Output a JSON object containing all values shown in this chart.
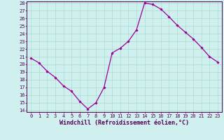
{
  "hours": [
    0,
    1,
    2,
    3,
    4,
    5,
    6,
    7,
    8,
    9,
    10,
    11,
    12,
    13,
    14,
    15,
    16,
    17,
    18,
    19,
    20,
    21,
    22,
    23
  ],
  "values": [
    20.8,
    20.2,
    19.1,
    18.3,
    17.2,
    16.5,
    15.2,
    14.2,
    15.0,
    17.0,
    21.5,
    22.1,
    23.0,
    24.5,
    28.0,
    27.8,
    27.2,
    26.2,
    25.1,
    24.2,
    23.3,
    22.2,
    21.0,
    20.3
  ],
  "line_color": "#990099",
  "marker": "D",
  "marker_size": 1.8,
  "bg_color": "#cff0ee",
  "grid_color": "#aaddcc",
  "xlabel": "Windchill (Refroidissement éolien,°C)",
  "ylim": [
    14,
    28
  ],
  "xlim": [
    -0.5,
    23.5
  ],
  "yticks": [
    14,
    15,
    16,
    17,
    18,
    19,
    20,
    21,
    22,
    23,
    24,
    25,
    26,
    27,
    28
  ],
  "xticks": [
    0,
    1,
    2,
    3,
    4,
    5,
    6,
    7,
    8,
    9,
    10,
    11,
    12,
    13,
    14,
    15,
    16,
    17,
    18,
    19,
    20,
    21,
    22,
    23
  ],
  "tick_fontsize": 5.0,
  "xlabel_fontsize": 6.0,
  "line_width": 0.9
}
